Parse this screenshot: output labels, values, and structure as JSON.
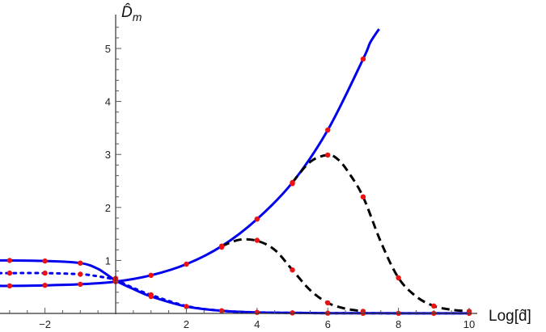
{
  "chart_data": {
    "type": "line",
    "ylabel": "D̂_m",
    "xlabel": "Log[d̂]",
    "xlim": [
      -3.3,
      10.1
    ],
    "ylim": [
      0,
      5.55
    ],
    "x_ticks": [
      -2,
      2,
      4,
      6,
      8,
      10
    ],
    "y_ticks": [
      1,
      2,
      3,
      4,
      5
    ],
    "x_tick_labels": [
      "−2",
      "2",
      "4",
      "6",
      "8",
      "10"
    ],
    "y_tick_labels": [
      "1",
      "2",
      "3",
      "4",
      "5"
    ],
    "grid": false,
    "series": [
      {
        "style": "solid",
        "color": "#0000ee",
        "x": [
          -3.3,
          -3,
          -2,
          -1,
          0,
          1,
          2,
          3,
          4,
          5,
          6,
          7,
          7.2,
          7.45
        ],
        "y": [
          0.52,
          0.52,
          0.53,
          0.55,
          0.6,
          0.72,
          0.93,
          1.27,
          1.78,
          2.47,
          3.46,
          4.8,
          5.11,
          5.58
        ]
      },
      {
        "style": "solid",
        "color": "#0000ee",
        "x": [
          -3.3,
          -3,
          -2,
          -1,
          -0.5,
          0,
          0.5,
          1,
          2,
          3,
          4,
          5,
          6,
          7,
          8,
          9,
          10
        ],
        "y": [
          1,
          1,
          0.99,
          0.95,
          0.84,
          0.62,
          0.46,
          0.32,
          0.13,
          0.05,
          0.02,
          0.01,
          0.005,
          0.003,
          0.002,
          0.001,
          0.001
        ]
      },
      {
        "style": "dotted",
        "color": "#0000ee",
        "x": [
          -3.3,
          -3,
          -2,
          -1,
          -0.5,
          0,
          0.5,
          1,
          2,
          3,
          4,
          5,
          6,
          7,
          8,
          9,
          10
        ],
        "y": [
          0.76,
          0.76,
          0.76,
          0.74,
          0.7,
          0.63,
          0.48,
          0.35,
          0.14,
          0.05,
          0.02,
          0.01,
          0.005,
          0.003,
          0.002,
          0.001,
          0.001
        ]
      },
      {
        "style": "dashed",
        "color": "#000000",
        "x": [
          3,
          3.5,
          4,
          4.5,
          5,
          5.5,
          6,
          6.5,
          7
        ],
        "y": [
          1.27,
          1.39,
          1.37,
          1.2,
          0.82,
          0.44,
          0.2,
          0.09,
          0.04
        ]
      },
      {
        "style": "dashed",
        "color": "#000000",
        "x": [
          5,
          5.5,
          6,
          6.3,
          6.6,
          7,
          7.5,
          8,
          8.5,
          9,
          9.5,
          10
        ],
        "y": [
          2.47,
          2.86,
          2.99,
          2.9,
          2.65,
          2.2,
          1.35,
          0.67,
          0.32,
          0.14,
          0.07,
          0.04
        ]
      }
    ],
    "markers": {
      "color": "#ee1111",
      "x": [
        -3,
        -2,
        -1,
        -3,
        -2,
        -1,
        -3,
        -2,
        -1,
        0,
        0,
        0,
        1,
        1,
        1,
        2,
        2,
        3,
        3,
        3,
        4,
        4,
        4,
        5,
        5,
        5,
        5,
        6,
        6,
        6,
        6,
        7,
        7,
        7,
        7,
        8,
        8,
        9,
        9,
        10,
        10
      ],
      "y": [
        1,
        0.99,
        0.95,
        0.76,
        0.76,
        0.74,
        0.52,
        0.53,
        0.55,
        0.6,
        0.63,
        0.66,
        0.72,
        0.35,
        0.32,
        0.93,
        0.13,
        1.27,
        1.25,
        0.05,
        1.78,
        1.38,
        0.02,
        2.47,
        2.45,
        0.82,
        0.01,
        3.46,
        2.99,
        0.2,
        0.005,
        4.8,
        2.2,
        0.04,
        0.003,
        0.67,
        0.002,
        0.14,
        0.001,
        0.04,
        0.001
      ]
    }
  }
}
